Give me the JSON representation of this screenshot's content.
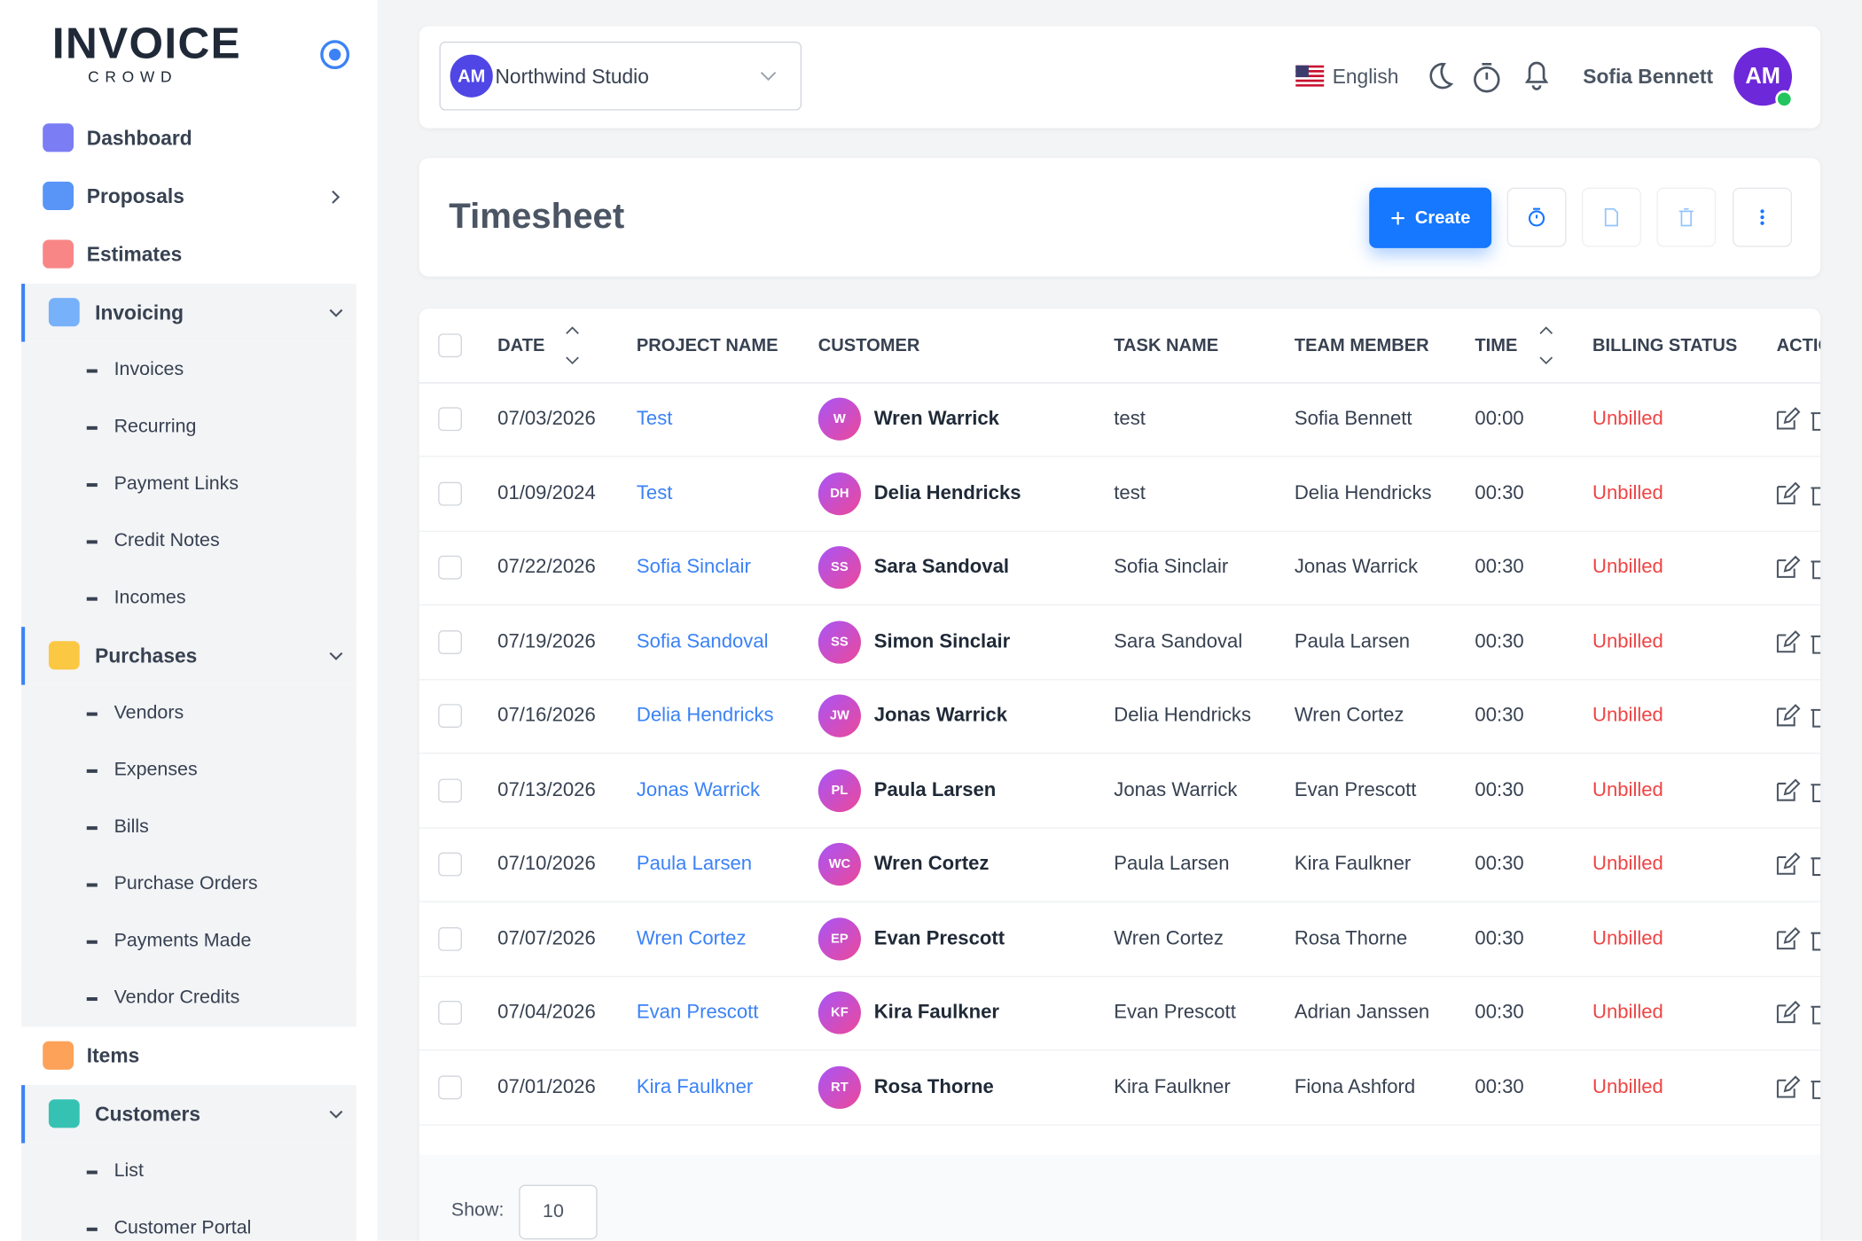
{
  "sidebar": {
    "logo_main": "INVOICE",
    "logo_sub": "CROWD",
    "items": [
      {
        "label": "Dashboard"
      },
      {
        "label": "Proposals"
      },
      {
        "label": "Estimates"
      },
      {
        "label": "Invoicing",
        "children": [
          "Invoices",
          "Recurring",
          "Payment Links",
          "Credit Notes",
          "Incomes"
        ]
      },
      {
        "label": "Purchases",
        "children": [
          "Vendors",
          "Expenses",
          "Bills",
          "Purchase Orders",
          "Payments Made",
          "Vendor Credits"
        ]
      },
      {
        "label": "Items"
      },
      {
        "label": "Customers",
        "children": [
          "List",
          "Customer Portal"
        ]
      }
    ]
  },
  "topbar": {
    "company_initials": "AM",
    "company": "Northwind Studio",
    "language": "English",
    "user": "Sofia Bennett",
    "user_initials": "AM"
  },
  "page": {
    "title": "Timesheet",
    "create": "Create"
  },
  "table": {
    "columns": [
      "DATE",
      "PROJECT NAME",
      "CUSTOMER",
      "TASK NAME",
      "TEAM MEMBER",
      "TIME",
      "BILLING STATUS",
      "ACTIONS"
    ],
    "rows": [
      [
        "07/03/2026",
        "Test",
        "W",
        "Wren Warrick",
        "test",
        "Sofia Bennett",
        "00:00",
        "Unbilled"
      ],
      [
        "01/09/2024",
        "Test",
        "DH",
        "Delia Hendricks",
        "test",
        "Delia Hendricks",
        "00:30",
        "Unbilled"
      ],
      [
        "07/22/2026",
        "Sofia Sinclair",
        "SS",
        "Sara Sandoval",
        "Sofia Sinclair",
        "Jonas Warrick",
        "00:30",
        "Unbilled"
      ],
      [
        "07/19/2026",
        "Sofia Sandoval",
        "SS",
        "Simon Sinclair",
        "Sara Sandoval",
        "Paula Larsen",
        "00:30",
        "Unbilled"
      ],
      [
        "07/16/2026",
        "Delia Hendricks",
        "JW",
        "Jonas Warrick",
        "Delia Hendricks",
        "Wren Cortez",
        "00:30",
        "Unbilled"
      ],
      [
        "07/13/2026",
        "Jonas Warrick",
        "PL",
        "Paula Larsen",
        "Jonas Warrick",
        "Evan Prescott",
        "00:30",
        "Unbilled"
      ],
      [
        "07/10/2026",
        "Paula Larsen",
        "WC",
        "Wren Cortez",
        "Paula Larsen",
        "Kira Faulkner",
        "00:30",
        "Unbilled"
      ],
      [
        "07/07/2026",
        "Wren Cortez",
        "EP",
        "Evan Prescott",
        "Wren Cortez",
        "Rosa Thorne",
        "00:30",
        "Unbilled"
      ],
      [
        "07/04/2026",
        "Evan Prescott",
        "KF",
        "Kira Faulkner",
        "Evan Prescott",
        "Adrian Janssen",
        "00:30",
        "Unbilled"
      ],
      [
        "07/01/2026",
        "Kira Faulkner",
        "RT",
        "Rosa Thorne",
        "Kira Faulkner",
        "Fiona Ashford",
        "00:30",
        "Unbilled"
      ]
    ]
  },
  "footer": {
    "show_label": "Show:",
    "page_size": "10"
  }
}
